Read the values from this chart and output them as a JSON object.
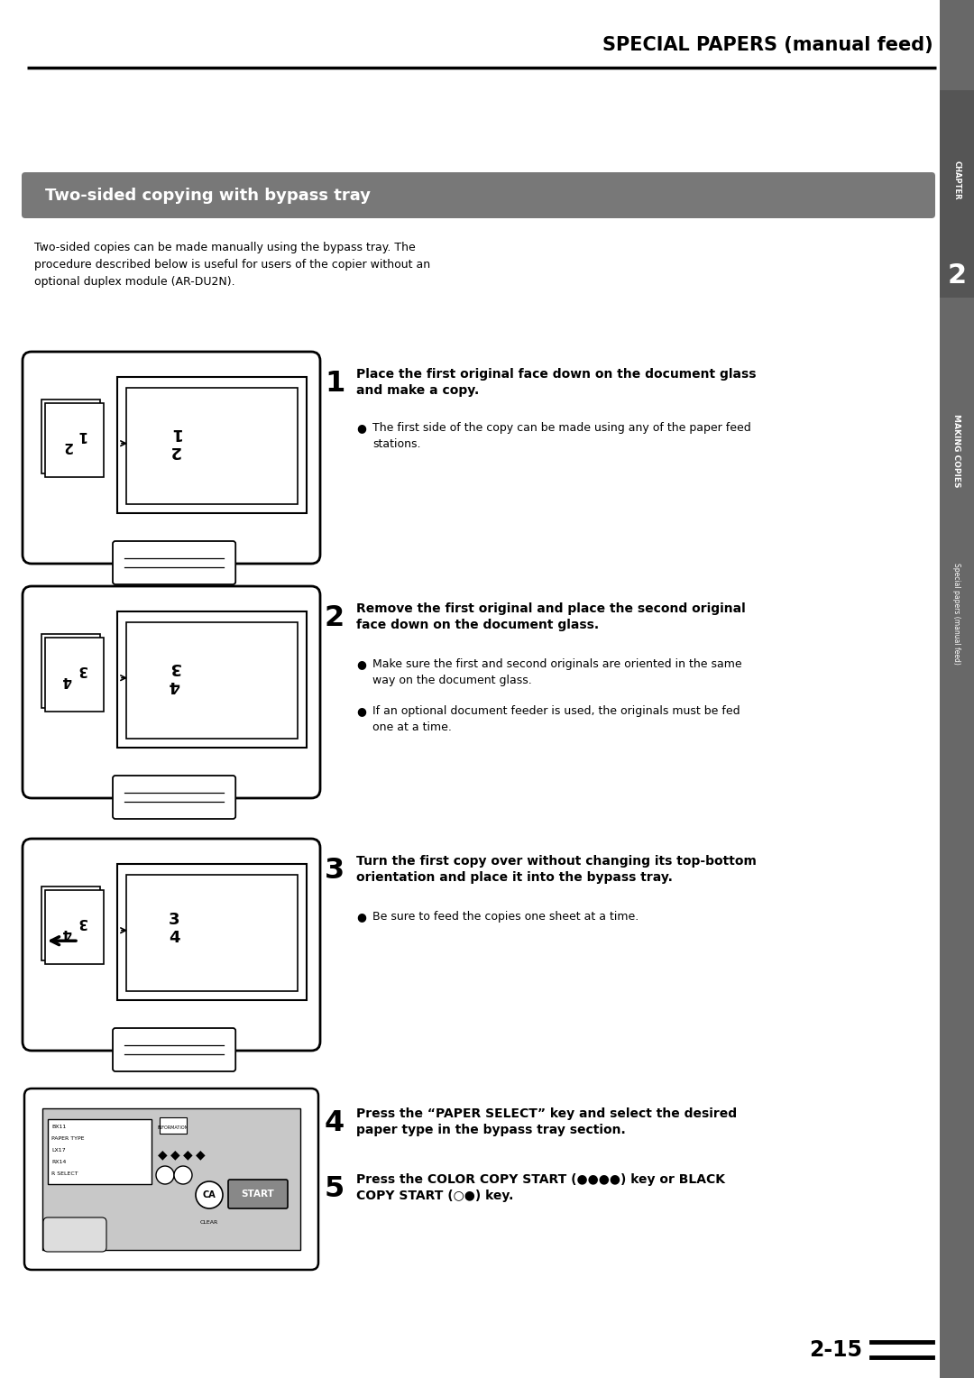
{
  "title": "SPECIAL PAPERS (manual feed)",
  "section_title": "Two-sided copying with bypass tray",
  "section_title_color": "#ffffff",
  "section_bg_color": "#787878",
  "intro_lines": [
    "Two-sided copies can be made manually using the bypass tray. The",
    "procedure described below is useful for users of the copier without an",
    "optional duplex module (AR-DU2N)."
  ],
  "chapter_label": "CHAPTER",
  "chapter_number": "2",
  "sidebar_label": "MAKING COPIES",
  "sidebar_sublabel": "Special papers (manual feed)",
  "sidebar_bg": "#686868",
  "chapter_bg": "#686868",
  "steps": [
    {
      "number": "1",
      "bold_text": "Place the first original face down on the document glass\nand make a copy.",
      "bullets": [
        "The first side of the copy can be made using any of the paper feed\nstations."
      ]
    },
    {
      "number": "2",
      "bold_text": "Remove the first original and place the second original\nface down on the document glass.",
      "bullets": [
        "Make sure the first and second originals are oriented in the same\nway on the document glass.",
        "If an optional document feeder is used, the originals must be fed\none at a time."
      ]
    },
    {
      "number": "3",
      "bold_text": "Turn the first copy over without changing its top-bottom\norientation and place it into the bypass tray.",
      "bullets": [
        "Be sure to feed the copies one sheet at a time."
      ]
    },
    {
      "number": "4",
      "bold_text": "Press the “PAPER SELECT” key and select the desired\npaper type in the bypass tray section.",
      "bullets": []
    },
    {
      "number": "5",
      "bold_text": "Press the COLOR COPY START (●●●●) key or BLACK\nCOPY START (○●) key.",
      "bullets": []
    }
  ],
  "page_number": "2-15",
  "bg_color": "#ffffff"
}
